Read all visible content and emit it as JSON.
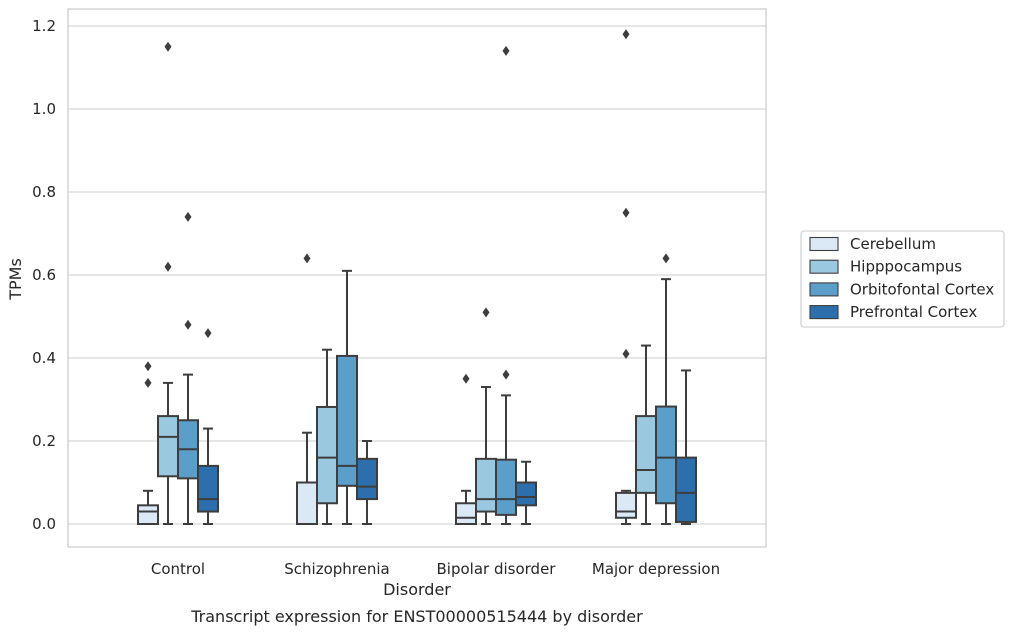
{
  "caption": "Transcript expression for ENST00000515444 by disorder",
  "chart_data": {
    "type": "boxplot",
    "xlabel": "Disorder",
    "ylabel": "TPMs",
    "ylim": [
      -0.055,
      1.24
    ],
    "yticks": [
      0.0,
      0.2,
      0.4,
      0.6,
      0.8,
      1.0,
      1.2
    ],
    "ytick_labels": [
      "0.0",
      "0.2",
      "0.4",
      "0.6",
      "0.8",
      "1.0",
      "1.2"
    ],
    "grid": "horizontal",
    "legend_position": "right",
    "categories": [
      "Control",
      "Schizophrenia",
      "Bipolar disorder",
      "Major depression"
    ],
    "series": [
      {
        "name": "Cerebellum",
        "color": "#dbe9f6",
        "boxes": [
          {
            "whislo": 0.0,
            "q1": 0.0,
            "med": 0.03,
            "q3": 0.045,
            "whishi": 0.08,
            "fliers": [
              0.34,
              0.38
            ]
          },
          {
            "whislo": 0.0,
            "q1": 0.0,
            "med": 0.0,
            "q3": 0.1,
            "whishi": 0.22,
            "fliers": [
              0.64
            ]
          },
          {
            "whislo": 0.0,
            "q1": 0.0,
            "med": 0.015,
            "q3": 0.05,
            "whishi": 0.08,
            "fliers": [
              0.35
            ]
          },
          {
            "whislo": 0.0,
            "q1": 0.015,
            "med": 0.03,
            "q3": 0.075,
            "whishi": 0.08,
            "fliers": [
              0.41,
              0.75,
              1.18
            ]
          }
        ]
      },
      {
        "name": "Hipppocampus",
        "color": "#9ac8e0",
        "boxes": [
          {
            "whislo": 0.0,
            "q1": 0.115,
            "med": 0.21,
            "q3": 0.26,
            "whishi": 0.34,
            "fliers": [
              0.62,
              1.15
            ]
          },
          {
            "whislo": 0.0,
            "q1": 0.05,
            "med": 0.16,
            "q3": 0.282,
            "whishi": 0.42,
            "fliers": []
          },
          {
            "whislo": 0.0,
            "q1": 0.03,
            "med": 0.06,
            "q3": 0.157,
            "whishi": 0.33,
            "fliers": [
              0.51
            ]
          },
          {
            "whislo": 0.0,
            "q1": 0.075,
            "med": 0.13,
            "q3": 0.26,
            "whishi": 0.43,
            "fliers": []
          }
        ]
      },
      {
        "name": "Orbitofontal Cortex",
        "color": "#5a9ec9",
        "boxes": [
          {
            "whislo": 0.0,
            "q1": 0.11,
            "med": 0.18,
            "q3": 0.25,
            "whishi": 0.36,
            "fliers": [
              0.48,
              0.74
            ]
          },
          {
            "whislo": 0.0,
            "q1": 0.092,
            "med": 0.14,
            "q3": 0.405,
            "whishi": 0.61,
            "fliers": []
          },
          {
            "whislo": 0.0,
            "q1": 0.022,
            "med": 0.06,
            "q3": 0.155,
            "whishi": 0.31,
            "fliers": [
              0.36,
              1.14
            ]
          },
          {
            "whislo": 0.0,
            "q1": 0.05,
            "med": 0.16,
            "q3": 0.283,
            "whishi": 0.59,
            "fliers": [
              0.64
            ]
          }
        ]
      },
      {
        "name": "Prefrontal Cortex",
        "color": "#2c6fac",
        "boxes": [
          {
            "whislo": 0.0,
            "q1": 0.03,
            "med": 0.06,
            "q3": 0.14,
            "whishi": 0.23,
            "fliers": [
              0.46
            ]
          },
          {
            "whislo": 0.0,
            "q1": 0.06,
            "med": 0.09,
            "q3": 0.157,
            "whishi": 0.2,
            "fliers": []
          },
          {
            "whislo": 0.0,
            "q1": 0.045,
            "med": 0.065,
            "q3": 0.1,
            "whishi": 0.15,
            "fliers": []
          },
          {
            "whislo": 0.0,
            "q1": 0.005,
            "med": 0.075,
            "q3": 0.16,
            "whishi": 0.37,
            "fliers": []
          }
        ]
      }
    ]
  }
}
